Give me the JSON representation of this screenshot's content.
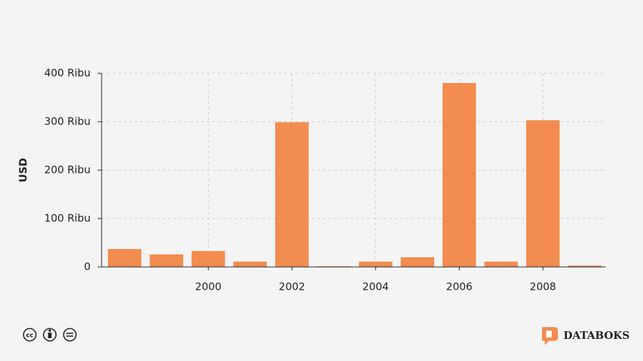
{
  "chart_data": {
    "type": "bar",
    "y_label": "USD",
    "x": [
      1998,
      1999,
      2000,
      2001,
      2002,
      2003,
      2004,
      2005,
      2006,
      2007,
      2008,
      2009
    ],
    "values": [
      37000,
      26000,
      33000,
      11000,
      299000,
      1500,
      11000,
      20000,
      380000,
      11000,
      303000,
      3000
    ],
    "color": "#f28c4f",
    "xlim": [
      1997.45,
      2009.5
    ],
    "xticks": [
      2000,
      2002,
      2004,
      2006,
      2008
    ],
    "ylim": [
      0,
      400000
    ],
    "yticks": [
      0,
      {
        "value": 100000,
        "label": "100 Ribu"
      },
      {
        "value": 200000,
        "label": "200 Ribu"
      },
      {
        "value": 300000,
        "label": "300 Ribu"
      },
      {
        "value": 400000,
        "label": "400 Ribu"
      }
    ],
    "grid": true
  },
  "footer": {
    "brand": "DATABOKS"
  }
}
